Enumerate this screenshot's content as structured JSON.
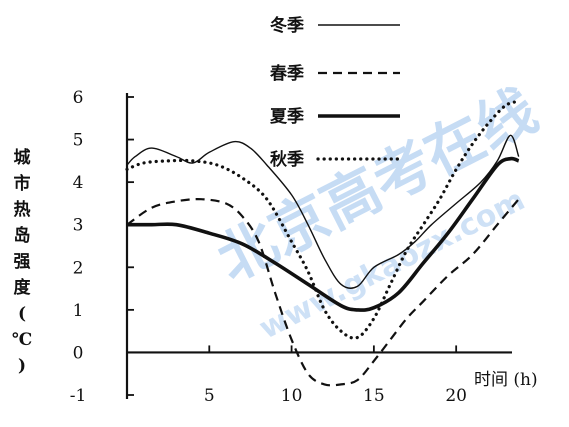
{
  "chart_data": {
    "type": "line",
    "title": "",
    "xlabel": "时间 (h)",
    "ylabel": "城市热岛强度(℃)",
    "xlim": [
      0,
      24
    ],
    "ylim": [
      -1,
      6
    ],
    "x_ticks": [
      5,
      10,
      15,
      20
    ],
    "y_ticks": [
      -1,
      0,
      1,
      2,
      3,
      4,
      5,
      6
    ],
    "grid": false,
    "legend_position": "top",
    "series": [
      {
        "name": "冬季",
        "style": "thin-solid",
        "points": [
          [
            0,
            4.4
          ],
          [
            0.5,
            4.6
          ],
          [
            1.5,
            4.8
          ],
          [
            3,
            4.6
          ],
          [
            4,
            4.45
          ],
          [
            5,
            4.7
          ],
          [
            6.5,
            4.95
          ],
          [
            7.5,
            4.8
          ],
          [
            8.5,
            4.4
          ],
          [
            10,
            3.7
          ],
          [
            11,
            3.0
          ],
          [
            12,
            2.2
          ],
          [
            13,
            1.6
          ],
          [
            14,
            1.55
          ],
          [
            15,
            2.0
          ],
          [
            16.5,
            2.3
          ],
          [
            17.5,
            2.6
          ],
          [
            18.5,
            3.0
          ],
          [
            20,
            3.5
          ],
          [
            21.5,
            4.0
          ],
          [
            22.5,
            4.5
          ],
          [
            23.3,
            5.1
          ],
          [
            23.8,
            4.6
          ]
        ]
      },
      {
        "name": "春季",
        "style": "dashed",
        "points": [
          [
            0,
            3.0
          ],
          [
            1.5,
            3.4
          ],
          [
            3,
            3.55
          ],
          [
            4.5,
            3.6
          ],
          [
            6,
            3.5
          ],
          [
            7,
            3.2
          ],
          [
            8,
            2.6
          ],
          [
            9,
            1.4
          ],
          [
            10,
            0.3
          ],
          [
            11,
            -0.5
          ],
          [
            12,
            -0.75
          ],
          [
            13,
            -0.75
          ],
          [
            14,
            -0.65
          ],
          [
            15,
            -0.2
          ],
          [
            16,
            0.3
          ],
          [
            17,
            0.8
          ],
          [
            18,
            1.2
          ],
          [
            19.5,
            1.8
          ],
          [
            21,
            2.3
          ],
          [
            22.5,
            3.0
          ],
          [
            23.8,
            3.6
          ]
        ]
      },
      {
        "name": "夏季",
        "style": "thick-solid",
        "points": [
          [
            0,
            3.0
          ],
          [
            1.5,
            3.0
          ],
          [
            3,
            3.0
          ],
          [
            5,
            2.8
          ],
          [
            7,
            2.55
          ],
          [
            9,
            2.1
          ],
          [
            11,
            1.6
          ],
          [
            13,
            1.1
          ],
          [
            14,
            1.0
          ],
          [
            15,
            1.05
          ],
          [
            16.5,
            1.4
          ],
          [
            18,
            2.1
          ],
          [
            19.5,
            2.8
          ],
          [
            21,
            3.6
          ],
          [
            22.5,
            4.4
          ],
          [
            23.3,
            4.55
          ],
          [
            23.8,
            4.5
          ]
        ]
      },
      {
        "name": "秋季",
        "style": "dotted",
        "points": [
          [
            0,
            4.3
          ],
          [
            1,
            4.45
          ],
          [
            2.5,
            4.5
          ],
          [
            4,
            4.5
          ],
          [
            5.5,
            4.4
          ],
          [
            7,
            4.1
          ],
          [
            8.5,
            3.6
          ],
          [
            10,
            2.6
          ],
          [
            11,
            1.9
          ],
          [
            12,
            1.0
          ],
          [
            13,
            0.5
          ],
          [
            14,
            0.35
          ],
          [
            15,
            0.8
          ],
          [
            16,
            1.6
          ],
          [
            17,
            2.4
          ],
          [
            18,
            3.0
          ],
          [
            19,
            3.6
          ],
          [
            20,
            4.3
          ],
          [
            21,
            4.9
          ],
          [
            22,
            5.4
          ],
          [
            23,
            5.8
          ],
          [
            23.8,
            5.9
          ]
        ]
      }
    ],
    "watermark": "北京高考在线 www.gkaozx.com"
  }
}
